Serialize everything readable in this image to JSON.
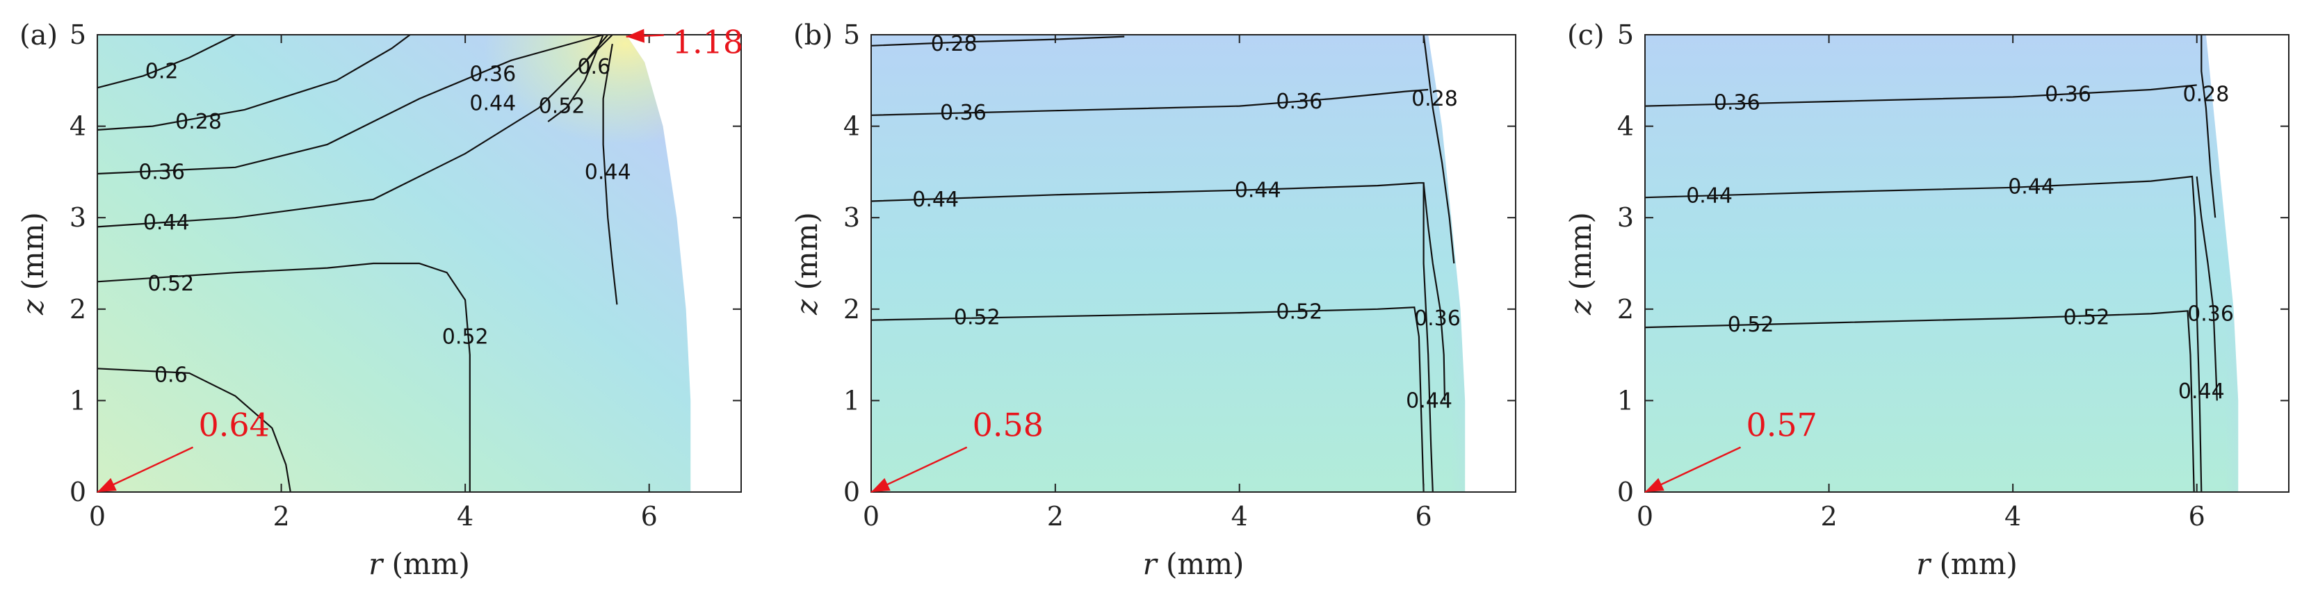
{
  "chart_data": [
    {
      "type": "contour",
      "panel": "(a)",
      "xlabel_var": "r",
      "xlabel_unit": "(mm)",
      "ylabel_var": "z",
      "ylabel_unit": "(mm)",
      "xlim": [
        0,
        7
      ],
      "ylim": [
        0,
        5
      ],
      "xticks": [
        0,
        2,
        4,
        6
      ],
      "yticks": [
        0,
        1,
        2,
        3,
        4,
        5
      ],
      "boundary": [
        [
          0,
          0
        ],
        [
          6.45,
          0
        ],
        [
          6.45,
          1
        ],
        [
          6.4,
          2
        ],
        [
          6.3,
          3
        ],
        [
          6.15,
          4
        ],
        [
          5.95,
          4.7
        ],
        [
          5.75,
          5
        ],
        [
          0,
          5
        ]
      ],
      "contours": [
        {
          "level": "0.2",
          "points": [
            [
              0,
              4.42
            ],
            [
              0.5,
              4.55
            ],
            [
              1.0,
              4.75
            ],
            [
              1.5,
              5.0
            ]
          ],
          "label_at": [
            0.7,
            4.6
          ]
        },
        {
          "level": "0.28",
          "points": [
            [
              0,
              3.96
            ],
            [
              0.6,
              4.0
            ],
            [
              1.6,
              4.18
            ],
            [
              2.6,
              4.5
            ],
            [
              3.2,
              4.85
            ],
            [
              3.4,
              5.0
            ]
          ],
          "label_at": [
            1.1,
            4.05
          ]
        },
        {
          "level": "0.36",
          "points": [
            [
              0,
              3.48
            ],
            [
              1.5,
              3.55
            ],
            [
              2.5,
              3.8
            ],
            [
              3.5,
              4.3
            ],
            [
              4.5,
              4.72
            ],
            [
              5.5,
              5.0
            ]
          ],
          "label_at": [
            0.7,
            3.5
          ],
          "label2_at": [
            4.3,
            4.57
          ]
        },
        {
          "level": "0.44",
          "points": [
            [
              0,
              2.9
            ],
            [
              1.5,
              3.0
            ],
            [
              3.0,
              3.2
            ],
            [
              4.0,
              3.7
            ],
            [
              4.8,
              4.2
            ],
            [
              5.3,
              4.7
            ],
            [
              5.6,
              5.0
            ]
          ],
          "label_at": [
            0.75,
            2.95
          ],
          "label2_at": [
            4.3,
            4.25
          ]
        },
        {
          "level": "0.52",
          "points": [
            [
              0,
              2.3
            ],
            [
              1.5,
              2.4
            ],
            [
              2.5,
              2.45
            ],
            [
              3.0,
              2.5
            ],
            [
              3.5,
              2.5
            ],
            [
              3.8,
              2.4
            ],
            [
              4.0,
              2.1
            ],
            [
              4.05,
              1.5
            ],
            [
              4.05,
              1.0
            ],
            [
              4.05,
              0
            ]
          ],
          "label_at": [
            0.8,
            2.28
          ],
          "label2_at": [
            4.0,
            1.7
          ]
        },
        {
          "level": "0.6",
          "points": [
            [
              0,
              1.35
            ],
            [
              1.0,
              1.3
            ],
            [
              1.5,
              1.05
            ],
            [
              1.9,
              0.7
            ],
            [
              2.05,
              0.3
            ],
            [
              2.1,
              0
            ]
          ],
          "label_at": [
            0.8,
            1.28
          ]
        },
        {
          "level": "0.52",
          "points": [
            [
              4.9,
              4.05
            ],
            [
              5.1,
              4.2
            ],
            [
              5.3,
              4.5
            ],
            [
              5.5,
              5.0
            ]
          ],
          "label_at": [
            5.05,
            4.22
          ]
        },
        {
          "level": "0.6",
          "points": [
            [
              5.05,
              4.45
            ],
            [
              5.3,
              4.7
            ],
            [
              5.55,
              5.0
            ]
          ],
          "label_at": [
            5.4,
            4.65
          ]
        },
        {
          "level": "0.44",
          "points": [
            [
              5.6,
              4.9
            ],
            [
              5.5,
              4.3
            ],
            [
              5.5,
              3.8
            ],
            [
              5.55,
              3.0
            ],
            [
              5.6,
              2.5
            ],
            [
              5.65,
              2.05
            ]
          ],
          "label_at": [
            5.55,
            3.5
          ]
        }
      ],
      "annotations": [
        {
          "label": "0.64",
          "at": [
            0,
            0
          ],
          "text_pos": [
            1.1,
            0.55
          ]
        },
        {
          "label": "1.18",
          "at": [
            5.75,
            4.98
          ],
          "text_pos": [
            6.25,
            4.92
          ]
        }
      ]
    },
    {
      "type": "contour",
      "panel": "(b)",
      "xlabel_var": "r",
      "xlabel_unit": "(mm)",
      "ylabel_var": "z",
      "ylabel_unit": "(mm)",
      "xlim": [
        0,
        7
      ],
      "ylim": [
        0,
        5
      ],
      "xticks": [
        0,
        2,
        4,
        6
      ],
      "yticks": [
        0,
        1,
        2,
        3,
        4,
        5
      ],
      "boundary": [
        [
          0,
          0
        ],
        [
          6.45,
          0
        ],
        [
          6.45,
          1
        ],
        [
          6.4,
          2
        ],
        [
          6.3,
          3
        ],
        [
          6.2,
          4
        ],
        [
          6.05,
          5
        ],
        [
          0,
          5
        ]
      ],
      "contours": [
        {
          "level": "0.28",
          "points": [
            [
              0,
              4.88
            ],
            [
              1.0,
              4.92
            ],
            [
              2.0,
              4.95
            ],
            [
              2.75,
              4.98
            ]
          ],
          "label_at": [
            0.9,
            4.9
          ]
        },
        {
          "level": "0.28",
          "points": [
            [
              6.0,
              5.0
            ],
            [
              6.05,
              4.6
            ],
            [
              6.1,
              4.2
            ],
            [
              6.2,
              3.6
            ],
            [
              6.28,
              3.0
            ],
            [
              6.33,
              2.5
            ]
          ],
          "label_at": [
            6.12,
            4.3
          ]
        },
        {
          "level": "0.36",
          "points": [
            [
              0,
              4.12
            ],
            [
              2.0,
              4.17
            ],
            [
              4.0,
              4.22
            ],
            [
              5.0,
              4.3
            ],
            [
              5.8,
              4.38
            ],
            [
              6.05,
              4.4
            ]
          ],
          "label_at": [
            1.0,
            4.15
          ],
          "label2_at": [
            4.65,
            4.27
          ]
        },
        {
          "level": "0.36",
          "points": [
            [
              6.0,
              3.38
            ],
            [
              6.05,
              2.9
            ],
            [
              6.1,
              2.5
            ],
            [
              6.18,
              2.0
            ],
            [
              6.22,
              1.5
            ],
            [
              6.23,
              1.0
            ]
          ],
          "label_at": [
            6.15,
            1.9
          ]
        },
        {
          "level": "0.44",
          "points": [
            [
              0,
              3.18
            ],
            [
              2.0,
              3.25
            ],
            [
              4.0,
              3.3
            ],
            [
              5.5,
              3.35
            ],
            [
              5.95,
              3.38
            ],
            [
              6.0,
              3.38
            ],
            [
              6.0,
              2.5
            ],
            [
              6.05,
              1.5
            ],
            [
              6.08,
              0.5
            ],
            [
              6.1,
              0
            ]
          ],
          "label_at": [
            0.7,
            3.2
          ],
          "label2_at": [
            4.2,
            3.3
          ],
          "label3_at": [
            6.06,
            1.0
          ]
        },
        {
          "level": "0.52",
          "points": [
            [
              0,
              1.88
            ],
            [
              2.0,
              1.92
            ],
            [
              4.0,
              1.96
            ],
            [
              5.5,
              2.0
            ],
            [
              5.9,
              2.02
            ],
            [
              5.95,
              1.7
            ],
            [
              5.97,
              1.0
            ],
            [
              6.0,
              0
            ]
          ],
          "label_at": [
            1.15,
            1.91
          ],
          "label2_at": [
            4.65,
            1.97
          ]
        }
      ],
      "annotations": [
        {
          "label": "0.58",
          "at": [
            0,
            0
          ],
          "text_pos": [
            1.1,
            0.55
          ]
        }
      ]
    },
    {
      "type": "contour",
      "panel": "(c)",
      "xlabel_var": "r",
      "xlabel_unit": "(mm)",
      "ylabel_var": "z",
      "ylabel_unit": "(mm)",
      "xlim": [
        0,
        7
      ],
      "ylim": [
        0,
        5
      ],
      "xticks": [
        0,
        2,
        4,
        6
      ],
      "yticks": [
        0,
        1,
        2,
        3,
        4,
        5
      ],
      "boundary": [
        [
          0,
          0
        ],
        [
          6.45,
          0
        ],
        [
          6.45,
          1
        ],
        [
          6.4,
          2
        ],
        [
          6.3,
          3
        ],
        [
          6.2,
          4
        ],
        [
          6.1,
          5
        ],
        [
          0,
          5
        ]
      ],
      "contours": [
        {
          "level": "0.28",
          "points": [
            [
              6.05,
              5.0
            ],
            [
              6.05,
              4.6
            ],
            [
              6.1,
              4.2
            ],
            [
              6.15,
              3.5
            ],
            [
              6.2,
              3.0
            ]
          ],
          "label_at": [
            6.1,
            4.35
          ]
        },
        {
          "level": "0.36",
          "points": [
            [
              0,
              4.22
            ],
            [
              2.0,
              4.27
            ],
            [
              4.0,
              4.32
            ],
            [
              5.5,
              4.4
            ],
            [
              6.0,
              4.45
            ]
          ],
          "label_at": [
            1.0,
            4.26
          ],
          "label2_at": [
            4.6,
            4.35
          ]
        },
        {
          "level": "0.36",
          "points": [
            [
              6.0,
              3.45
            ],
            [
              6.05,
              3.0
            ],
            [
              6.12,
              2.5
            ],
            [
              6.18,
              2.0
            ],
            [
              6.2,
              1.5
            ],
            [
              6.22,
              1.0
            ]
          ],
          "label_at": [
            6.15,
            1.95
          ]
        },
        {
          "level": "0.44",
          "points": [
            [
              0,
              3.22
            ],
            [
              2.0,
              3.28
            ],
            [
              4.0,
              3.33
            ],
            [
              5.5,
              3.4
            ],
            [
              5.95,
              3.45
            ],
            [
              5.98,
              3.0
            ],
            [
              6.0,
              2.0
            ],
            [
              6.03,
              1.0
            ],
            [
              6.05,
              0
            ]
          ],
          "label_at": [
            0.7,
            3.24
          ],
          "label2_at": [
            4.2,
            3.34
          ],
          "label3_at": [
            6.05,
            1.1
          ]
        },
        {
          "level": "0.52",
          "points": [
            [
              0,
              1.8
            ],
            [
              2.0,
              1.85
            ],
            [
              4.0,
              1.9
            ],
            [
              5.5,
              1.95
            ],
            [
              5.9,
              1.98
            ],
            [
              5.93,
              1.5
            ],
            [
              5.95,
              0.8
            ],
            [
              5.97,
              0
            ]
          ],
          "label_at": [
            1.15,
            1.83
          ],
          "label2_at": [
            4.8,
            1.91
          ]
        }
      ],
      "annotations": [
        {
          "label": "0.57",
          "at": [
            0,
            0
          ],
          "text_pos": [
            1.1,
            0.55
          ]
        }
      ]
    }
  ]
}
